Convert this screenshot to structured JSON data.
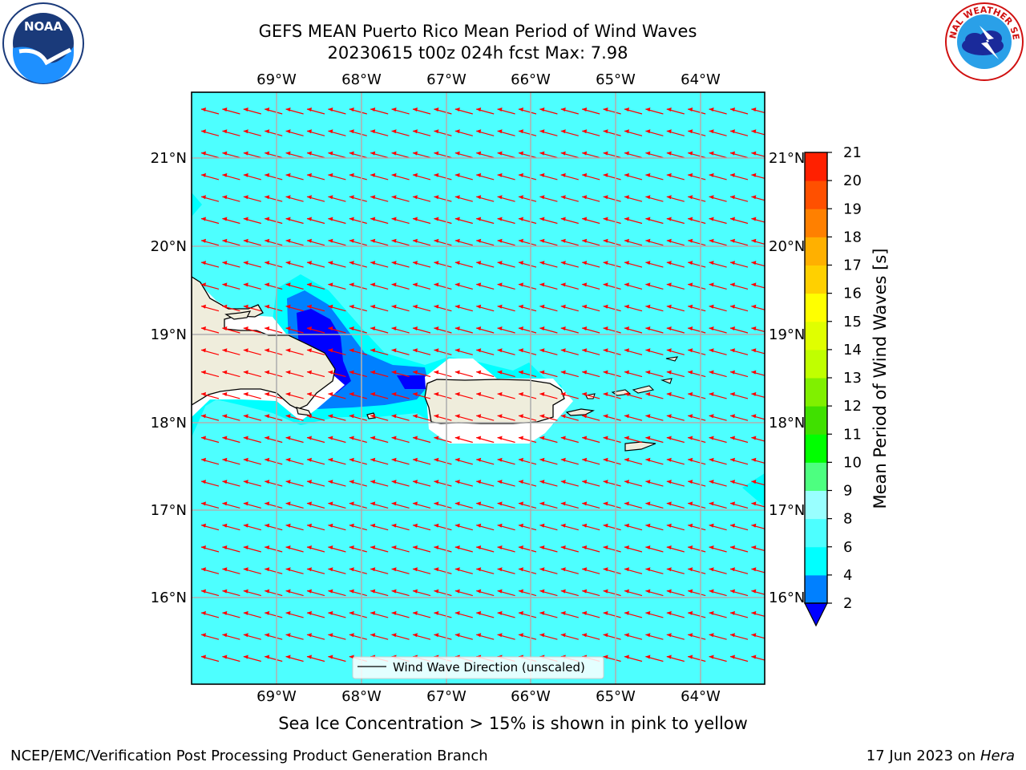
{
  "header": {
    "title_line1": "GEFS MEAN Puerto Rico Mean Period of Wind Waves",
    "title_line2": "20230615 t00z 024h fcst   Max: 7.98"
  },
  "logos": {
    "left": {
      "text": "NOAA",
      "ring_text": "NATIONAL OCEANIC AND ATMOSPHERIC ADMINISTRATION · U.S. DEPARTMENT OF COMMERCE"
    },
    "right": {
      "ring_text": "NATIONAL WEATHER SERVICE"
    }
  },
  "map": {
    "lon_labels": [
      "69°W",
      "68°W",
      "67°W",
      "66°W",
      "65°W",
      "64°W"
    ],
    "lat_labels": [
      "21°N",
      "20°N",
      "19°N",
      "18°N",
      "17°N",
      "16°N"
    ],
    "legend_label": "Wind Wave Direction (unscaled)",
    "colors": {
      "ocean": "#4dffff",
      "shallow": "#00ffff",
      "mid": "#0080ff",
      "deep": "#0000ff",
      "land": "#efeddc",
      "arrow": "#ff0000",
      "grid": "#b0b0b0"
    }
  },
  "colorbar": {
    "label": "Mean Period of Wind Waves [s]",
    "ticks": [
      "2",
      "4",
      "6",
      "8",
      "9",
      "10",
      "11",
      "12",
      "13",
      "14",
      "15",
      "16",
      "17",
      "18",
      "19",
      "20",
      "21"
    ],
    "colors": [
      "#0080ff",
      "#00ffff",
      "#4dffff",
      "#99ffff",
      "#4dff80",
      "#00ff00",
      "#40e000",
      "#80f000",
      "#c0ff00",
      "#e0ff00",
      "#ffff00",
      "#ffd000",
      "#ffb000",
      "#ff8000",
      "#ff5000",
      "#ff2000"
    ],
    "underflow_color": "#0000ff"
  },
  "caption": "Sea Ice Concentration > 15% is shown in pink to yellow",
  "footer": {
    "left": "NCEP/EMC/Verification Post Processing Product Generation Branch",
    "date": "17 Jun 2023 on ",
    "machine": "Hera"
  }
}
